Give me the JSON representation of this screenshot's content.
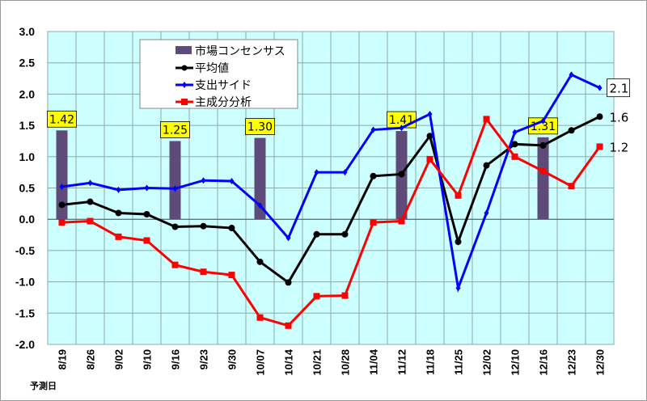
{
  "chart_data": {
    "type": "line",
    "title": "",
    "xlabel": "予測日",
    "ylabel": "",
    "ylim": [
      -2.0,
      3.0
    ],
    "yticks": [
      "3.0",
      "2.5",
      "2.0",
      "1.5",
      "1.0",
      "0.5",
      "0.0",
      "-0.5",
      "-1.0",
      "-1.5",
      "-2.0"
    ],
    "grid": true,
    "legend_position": "top-center",
    "categories": [
      "8/19",
      "8/26",
      "9/02",
      "9/10",
      "9/16",
      "9/23",
      "9/30",
      "10/07",
      "10/14",
      "10/21",
      "10/28",
      "11/04",
      "11/12",
      "11/18",
      "11/25",
      "12/02",
      "12/10",
      "12/16",
      "12/23",
      "12/30"
    ],
    "consensus": {
      "name": "市場コンセンサス",
      "color": "#5f4b7a",
      "points": [
        {
          "category": "8/19",
          "value": 1.42,
          "label": "1.42"
        },
        {
          "category": "9/16",
          "value": 1.25,
          "label": "1.25"
        },
        {
          "category": "10/07",
          "value": 1.3,
          "label": "1.30"
        },
        {
          "category": "11/12",
          "value": 1.41,
          "label": "1.41"
        },
        {
          "category": "12/16",
          "value": 1.31,
          "label": "1.31"
        }
      ]
    },
    "series": [
      {
        "name": "平均値",
        "color": "#000000",
        "marker": "circle",
        "end_label": "1.6",
        "values": [
          0.23,
          0.28,
          0.1,
          0.08,
          -0.12,
          -0.11,
          -0.14,
          -0.68,
          -1.01,
          -0.24,
          -0.24,
          0.69,
          0.72,
          1.33,
          -0.36,
          0.86,
          1.2,
          1.18,
          1.42,
          1.64
        ]
      },
      {
        "name": "支出サイド",
        "color": "#0000ff",
        "marker": "diamond",
        "end_label": "2.1",
        "values": [
          0.52,
          0.58,
          0.47,
          0.5,
          0.49,
          0.62,
          0.61,
          0.22,
          -0.3,
          0.75,
          0.75,
          1.43,
          1.46,
          1.68,
          -1.1,
          0.1,
          1.39,
          1.57,
          2.31,
          2.1
        ]
      },
      {
        "name": "主成分分析",
        "color": "#ff0000",
        "marker": "square",
        "end_label": "1.2",
        "values": [
          -0.05,
          -0.03,
          -0.28,
          -0.34,
          -0.73,
          -0.84,
          -0.89,
          -1.57,
          -1.7,
          -1.23,
          -1.22,
          -0.05,
          -0.03,
          0.96,
          0.38,
          1.6,
          1.0,
          0.77,
          0.53,
          1.16
        ]
      }
    ]
  }
}
